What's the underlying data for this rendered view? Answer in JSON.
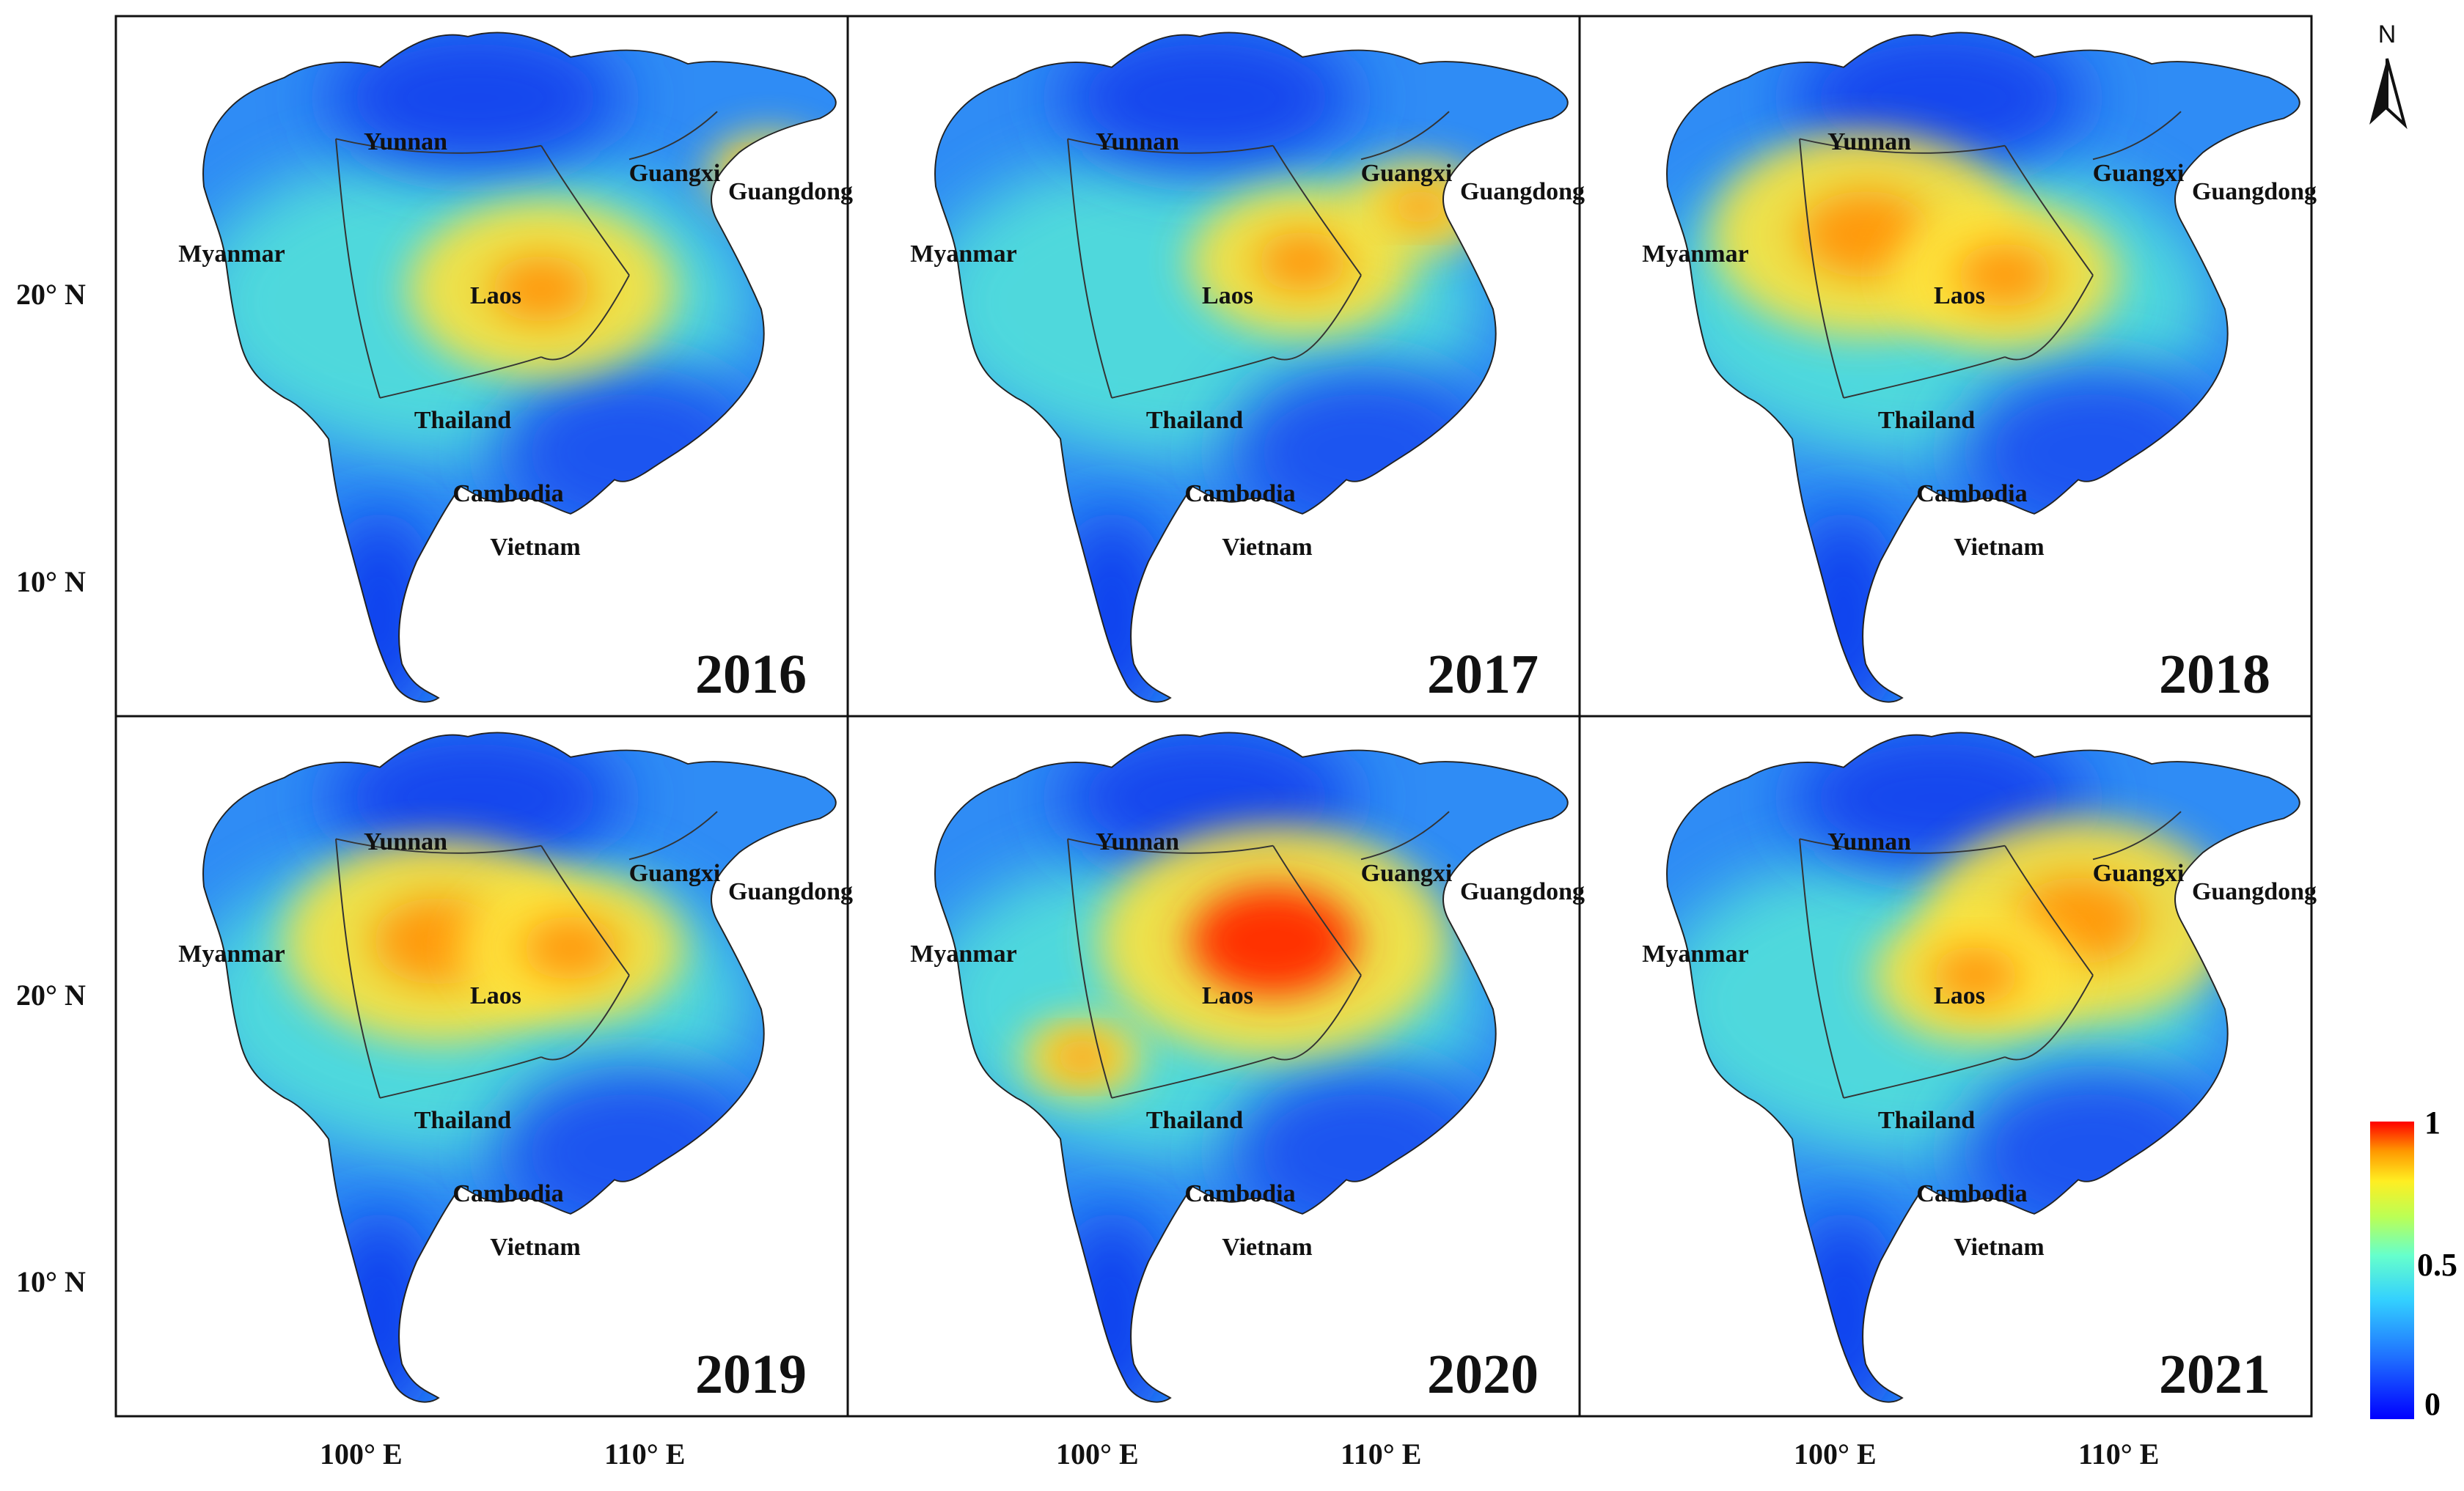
{
  "years": [
    "2016",
    "2017",
    "2018",
    "2019",
    "2020",
    "2021"
  ],
  "regions": {
    "yunnan": "Yunnan",
    "guangxi": "Guangxi",
    "guangdong": "Guangdong",
    "myanmar": "Myanmar",
    "laos": "Laos",
    "thailand": "Thailand",
    "cambodia": "Cambodia",
    "vietnam": "Vietnam"
  },
  "lat_labels": [
    "20° N",
    "10° N"
  ],
  "lon_labels": [
    "100° E",
    "110° E"
  ],
  "north_arrow_label": "N",
  "legend": {
    "max": "1",
    "mid": "0.5",
    "min": "0",
    "colors": [
      "#0000ff",
      "#1e6cff",
      "#33c8ff",
      "#66ffcc",
      "#aaff66",
      "#ffff33",
      "#ff9900",
      "#ff0000"
    ]
  },
  "panel_hotspots": [
    {
      "year": "2016",
      "level": 0.75,
      "note": "central Laos / northern Vietnam"
    },
    {
      "year": "2017",
      "level": 0.8,
      "note": "northern Laos / Vietnam border"
    },
    {
      "year": "2018",
      "level": 0.85,
      "note": "Myanmar / northern Laos"
    },
    {
      "year": "2019",
      "level": 0.85,
      "note": "northern Laos / eastern Myanmar"
    },
    {
      "year": "2020",
      "level": 0.95,
      "note": "northern Laos"
    },
    {
      "year": "2021",
      "level": 0.85,
      "note": "northern Vietnam"
    }
  ]
}
